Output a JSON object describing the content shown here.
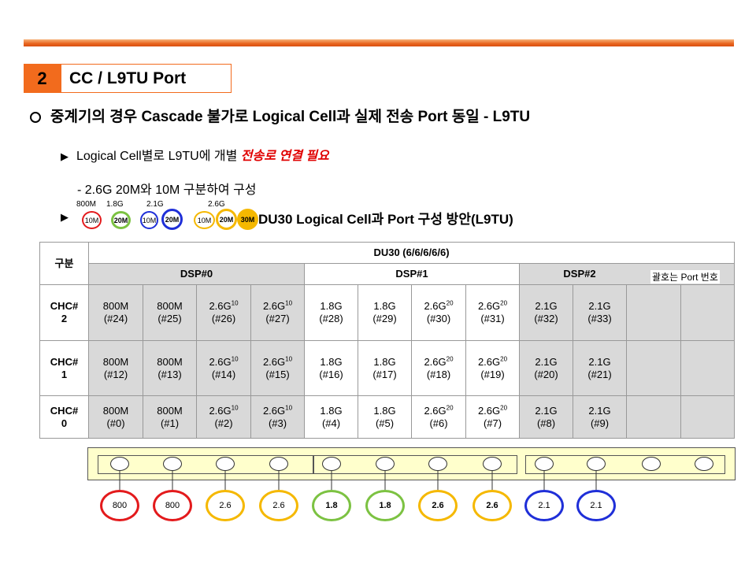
{
  "section": {
    "number": "2",
    "title": "CC / L9TU Port"
  },
  "bullet_main": "중계기의 경우 Cascade 불가로 Logical Cell과 실제 전송 Port 동일 -   L9TU",
  "sub1": {
    "text": "Logical Cell별로 L9TU에 개별 ",
    "emphasis": "전송로 연결 필요"
  },
  "sub2": "- 2.6G 20M와 10M 구분하여 구성",
  "sub3": "DU30 Logical Cell과 Port 구성 방안(L9TU)",
  "legend": {
    "freqs": [
      "800M",
      "1.8G",
      "2.1G",
      "2.6G"
    ],
    "rings": [
      "10M",
      "20M",
      "10M",
      "20M",
      "10M",
      "20M",
      "30M"
    ]
  },
  "table": {
    "corner": "구분",
    "du_title": "DU30 (6/6/6/6/6)",
    "dsps": [
      "DSP#0",
      "DSP#1",
      "DSP#2"
    ],
    "port_note": "괄호는 Port 번호",
    "rows": [
      {
        "label": "CHC#\n2",
        "cells": [
          {
            "band": "800M",
            "port": "(#24)"
          },
          {
            "band": "800M",
            "port": "(#25)"
          },
          {
            "band": "2.6G",
            "sup": "10",
            "port": "(#26)"
          },
          {
            "band": "2.6G",
            "sup": "10",
            "port": "(#27)"
          },
          {
            "band": "1.8G",
            "port": "(#28)"
          },
          {
            "band": "1.8G",
            "port": "(#29)"
          },
          {
            "band": "2.6G",
            "sup": "20",
            "port": "(#30)"
          },
          {
            "band": "2.6G",
            "sup": "20",
            "port": "(#31)"
          },
          {
            "band": "2.1G",
            "port": "(#32)"
          },
          {
            "band": "2.1G",
            "port": "(#33)"
          }
        ]
      },
      {
        "label": "CHC#\n1",
        "cells": [
          {
            "band": "800M",
            "port": "(#12)"
          },
          {
            "band": "800M",
            "port": "(#13)"
          },
          {
            "band": "2.6G",
            "sup": "10",
            "port": "(#14)"
          },
          {
            "band": "2.6G",
            "sup": "10",
            "port": "(#15)"
          },
          {
            "band": "1.8G",
            "port": "(#16)"
          },
          {
            "band": "1.8G",
            "port": "(#17)"
          },
          {
            "band": "2.6G",
            "sup": "20",
            "port": "(#18)"
          },
          {
            "band": "2.6G",
            "sup": "20",
            "port": "(#19)"
          },
          {
            "band": "2.1G",
            "port": "(#20)"
          },
          {
            "band": "2.1G",
            "port": "(#21)"
          }
        ]
      },
      {
        "label": "CHC#\n0",
        "cells": [
          {
            "band": "800M",
            "port": "(#0)"
          },
          {
            "band": "800M",
            "port": "(#1)"
          },
          {
            "band": "2.6G",
            "sup": "10",
            "port": "(#2)"
          },
          {
            "band": "2.6G",
            "sup": "10",
            "port": "(#3)"
          },
          {
            "band": "1.8G",
            "port": "(#4)"
          },
          {
            "band": "1.8G",
            "port": "(#5)"
          },
          {
            "band": "2.6G",
            "sup": "20",
            "port": "(#6)"
          },
          {
            "band": "2.6G",
            "sup": "20",
            "port": "(#7)"
          },
          {
            "band": "2.1G",
            "port": "(#8)"
          },
          {
            "band": "2.1G",
            "port": "(#9)"
          }
        ]
      }
    ]
  },
  "ovals": [
    {
      "label": "800",
      "color": "#e31a1c",
      "bold": false
    },
    {
      "label": "800",
      "color": "#e31a1c",
      "bold": false
    },
    {
      "label": "2.6",
      "color": "#f5b800",
      "bold": false
    },
    {
      "label": "2.6",
      "color": "#f5b800",
      "bold": false
    },
    {
      "label": "1.8",
      "color": "#7cc242",
      "bold": true
    },
    {
      "label": "1.8",
      "color": "#7cc242",
      "bold": true
    },
    {
      "label": "2.6",
      "color": "#f5b800",
      "bold": true
    },
    {
      "label": "2.6",
      "color": "#f5b800",
      "bold": true
    },
    {
      "label": "2.1",
      "color": "#1f2fd8",
      "bold": false
    },
    {
      "label": "2.1",
      "color": "#1f2fd8",
      "bold": false
    }
  ],
  "colors": {
    "accent": "#f26b1d",
    "red": "#e31a1c",
    "green": "#7cc242",
    "blue": "#1f2fd8",
    "yellow": "#f5b800",
    "panel": "#ffffcc",
    "gray": "#d9d9d9"
  }
}
